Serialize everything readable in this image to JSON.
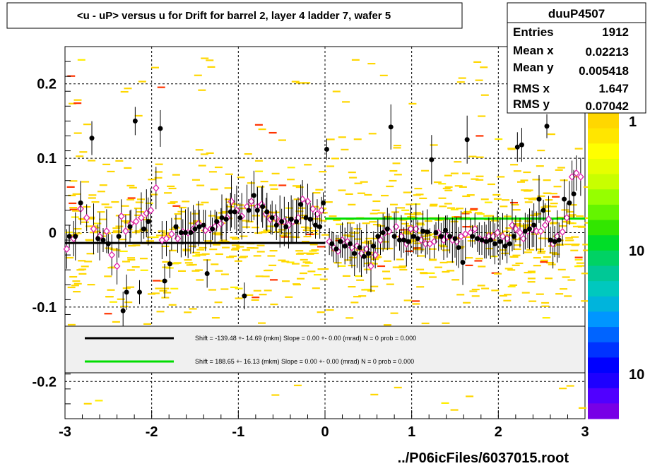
{
  "title": "<u - uP>       versus   u for Drift for barrel 2, layer 4 ladder 7, wafer 5",
  "footer": "../P06icFiles/6037015.root",
  "stats": {
    "name": "duuP4507",
    "rows": [
      {
        "label": "Entries",
        "value": "1912"
      },
      {
        "label": "Mean x",
        "value": "0.02213"
      },
      {
        "label": "Mean y",
        "value": "0.005418"
      },
      {
        "label": "RMS x",
        "value": "1.647"
      },
      {
        "label": "RMS y",
        "value": "0.07042"
      }
    ]
  },
  "legend": [
    {
      "color": "#000000",
      "text": "Shift =  -139.48 +- 14.69 (mkm) Slope =     0.00 +- 0.00 (mrad)  N = 0 prob = 0.000"
    },
    {
      "color": "#00dd00",
      "text": "Shift =   188.65 +- 16.13 (mkm) Slope =     0.00 +- 0.00 (mrad)  N = 0 prob = 0.000"
    }
  ],
  "colorbar": {
    "labels": [
      "1",
      "10",
      "10"
    ]
  },
  "chart_data": {
    "type": "scatter",
    "xlim": [
      -3,
      3
    ],
    "ylim": [
      -0.25,
      0.25
    ],
    "xticks": [
      "-3",
      "-2",
      "-1",
      "0",
      "1",
      "2",
      "3"
    ],
    "yticks": [
      "-0.2",
      "-0.1",
      "0",
      "0.1",
      "0.2"
    ],
    "grid": true,
    "fits": [
      {
        "x": [
          -3,
          0
        ],
        "y": -0.0139,
        "color": "#000000"
      },
      {
        "x": [
          0,
          3
        ],
        "y": 0.0189,
        "color": "#00dd00"
      }
    ],
    "series": [
      {
        "marker": "filled-circle",
        "color": "#000000",
        "points": [
          [
            -2.95,
            -0.005
          ],
          [
            -2.88,
            -0.005
          ],
          [
            -2.82,
            0.04
          ],
          [
            -2.69,
            0.127
          ],
          [
            -2.62,
            -0.008
          ],
          [
            -2.56,
            -0.01
          ],
          [
            -2.5,
            -0.015
          ],
          [
            -2.38,
            -0.005
          ],
          [
            -2.33,
            -0.105
          ],
          [
            -2.29,
            -0.08
          ],
          [
            -2.25,
            0.008
          ],
          [
            -2.19,
            0.15
          ],
          [
            -2.14,
            -0.08
          ],
          [
            -2.09,
            0.005
          ],
          [
            -2.04,
            0.015
          ],
          [
            -1.9,
            0.14
          ],
          [
            -1.85,
            -0.065
          ],
          [
            -1.79,
            -0.042
          ],
          [
            -1.72,
            0.008
          ],
          [
            -1.66,
            0
          ],
          [
            -1.61,
            0
          ],
          [
            -1.55,
            0
          ],
          [
            -1.5,
            0.005
          ],
          [
            -1.45,
            0.008
          ],
          [
            -1.4,
            0.01
          ],
          [
            -1.36,
            -0.055
          ],
          [
            -1.3,
            0.005
          ],
          [
            -1.25,
            0.015
          ],
          [
            -1.19,
            0.02
          ],
          [
            -1.14,
            0.018
          ],
          [
            -1.09,
            0.028
          ],
          [
            -1.04,
            0.028
          ],
          [
            -0.98,
            0.02
          ],
          [
            -0.93,
            -0.085
          ],
          [
            -0.88,
            0.03
          ],
          [
            -0.82,
            0.05
          ],
          [
            -0.78,
            0.03
          ],
          [
            -0.72,
            0.035
          ],
          [
            -0.67,
            0.028
          ],
          [
            -0.61,
            0.02
          ],
          [
            -0.56,
            0.01
          ],
          [
            -0.5,
            0.015
          ],
          [
            -0.45,
            0.008
          ],
          [
            -0.39,
            0.018
          ],
          [
            -0.33,
            0.015
          ],
          [
            -0.28,
            0.038
          ],
          [
            -0.22,
            0.02
          ],
          [
            -0.17,
            0.018
          ],
          [
            -0.11,
            0.01
          ],
          [
            -0.06,
            0.008
          ],
          [
            -0.02,
            0.04
          ],
          [
            0.02,
            0.112
          ],
          [
            0.08,
            -0.015
          ],
          [
            0.13,
            -0.022
          ],
          [
            0.18,
            -0.012
          ],
          [
            0.23,
            -0.018
          ],
          [
            0.29,
            -0.015
          ],
          [
            0.34,
            -0.028
          ],
          [
            0.4,
            -0.02
          ],
          [
            0.45,
            -0.032
          ],
          [
            0.5,
            -0.028
          ],
          [
            0.56,
            -0.018
          ],
          [
            0.61,
            -0.005
          ],
          [
            0.67,
            0
          ],
          [
            0.72,
            0.005
          ],
          [
            0.76,
            0.142
          ],
          [
            0.8,
            -0.005
          ],
          [
            0.86,
            -0.01
          ],
          [
            0.91,
            -0.01
          ],
          [
            0.96,
            -0.012
          ],
          [
            1.02,
            -0.005
          ],
          [
            1.07,
            -0.008
          ],
          [
            1.13,
            0.002
          ],
          [
            1.18,
            0.001
          ],
          [
            1.23,
            0.098
          ],
          [
            1.28,
            0
          ],
          [
            1.34,
            -0.005
          ],
          [
            1.39,
            0.003
          ],
          [
            1.44,
            -0.005
          ],
          [
            1.5,
            -0.008
          ],
          [
            1.54,
            -0.02
          ],
          [
            1.59,
            -0.04
          ],
          [
            1.64,
            0.125
          ],
          [
            1.7,
            -0.005
          ],
          [
            1.76,
            -0.008
          ],
          [
            1.81,
            -0.01
          ],
          [
            1.86,
            -0.012
          ],
          [
            1.91,
            -0.01
          ],
          [
            1.96,
            -0.015
          ],
          [
            2.02,
            -0.012
          ],
          [
            2.08,
            -0.018
          ],
          [
            2.13,
            -0.015
          ],
          [
            2.18,
            -0.005
          ],
          [
            2.22,
            0.115
          ],
          [
            2.27,
            0.118
          ],
          [
            2.31,
            0.002
          ],
          [
            2.36,
            0.005
          ],
          [
            2.41,
            0.01
          ],
          [
            2.47,
            0.045
          ],
          [
            2.52,
            0.03
          ],
          [
            2.56,
            0.143
          ],
          [
            2.6,
            -0.01
          ],
          [
            2.65,
            -0.012
          ],
          [
            2.7,
            -0.01
          ],
          [
            2.76,
            0.045
          ],
          [
            2.82,
            0.04
          ],
          [
            2.87,
            0.052
          ]
        ]
      },
      {
        "marker": "open-diamond",
        "color": "#dd22aa",
        "points": [
          [
            -2.98,
            -0.022
          ],
          [
            -2.9,
            -0.008
          ],
          [
            -2.82,
            0.032
          ],
          [
            -2.75,
            0.02
          ],
          [
            -2.67,
            0.005
          ],
          [
            -2.6,
            -0.005
          ],
          [
            -2.52,
            0.002
          ],
          [
            -2.46,
            -0.03
          ],
          [
            -2.4,
            -0.045
          ],
          [
            -2.35,
            0.022
          ],
          [
            -2.3,
            0.002
          ],
          [
            -2.24,
            0.012
          ],
          [
            -2.18,
            0.015
          ],
          [
            -2.12,
            0.02
          ],
          [
            -2.06,
            0.026
          ],
          [
            -2.01,
            0.03
          ],
          [
            -1.95,
            0.06
          ],
          [
            -1.88,
            -0.01
          ],
          [
            -1.83,
            -0.008
          ],
          [
            -1.77,
            -0.002
          ],
          [
            -1.7,
            -0.008
          ],
          [
            -1.64,
            0.001
          ],
          [
            -1.58,
            0
          ],
          [
            -1.52,
            0.005
          ],
          [
            -1.46,
            0.012
          ],
          [
            -1.38,
            0.003
          ],
          [
            -1.32,
            0.005
          ],
          [
            -1.27,
            0.008
          ],
          [
            -1.2,
            0.012
          ],
          [
            -1.13,
            0.02
          ],
          [
            -1.08,
            0.042
          ],
          [
            -1.02,
            0.03
          ],
          [
            -0.96,
            0.022
          ],
          [
            -0.9,
            0.035
          ],
          [
            -0.85,
            0.042
          ],
          [
            -0.78,
            0.035
          ],
          [
            -0.73,
            0.038
          ],
          [
            -0.68,
            0.025
          ],
          [
            -0.63,
            0.018
          ],
          [
            -0.57,
            0.02
          ],
          [
            -0.52,
            0.015
          ],
          [
            -0.47,
            0.015
          ],
          [
            -0.42,
            0.01
          ],
          [
            -0.37,
            0.015
          ],
          [
            -0.31,
            0.02
          ],
          [
            -0.26,
            0.045
          ],
          [
            -0.2,
            0.042
          ],
          [
            -0.14,
            0.032
          ],
          [
            -0.09,
            0.025
          ],
          [
            -0.04,
            0.03
          ],
          [
            0.05,
            -0.012
          ],
          [
            0.1,
            -0.02
          ],
          [
            0.15,
            -0.025
          ],
          [
            0.2,
            -0.01
          ],
          [
            0.26,
            -0.012
          ],
          [
            0.31,
            -0.02
          ],
          [
            0.37,
            -0.018
          ],
          [
            0.42,
            -0.028
          ],
          [
            0.48,
            -0.022
          ],
          [
            0.53,
            -0.045
          ],
          [
            0.58,
            -0.03
          ],
          [
            0.64,
            -0.01
          ],
          [
            0.69,
            0
          ],
          [
            0.74,
            0.002
          ],
          [
            0.82,
            0.008
          ],
          [
            0.88,
            -0.005
          ],
          [
            0.94,
            -0.015
          ],
          [
            0.99,
            0.005
          ],
          [
            1.05,
            0.005
          ],
          [
            1.11,
            -0.01
          ],
          [
            1.16,
            -0.015
          ],
          [
            1.21,
            -0.015
          ],
          [
            1.26,
            -0.012
          ],
          [
            1.31,
            0
          ],
          [
            1.37,
            -0.01
          ],
          [
            1.41,
            -0.005
          ],
          [
            1.47,
            -0.01
          ],
          [
            1.52,
            -0.012
          ],
          [
            1.57,
            -0.005
          ],
          [
            1.62,
            -0.002
          ],
          [
            1.68,
            0
          ],
          [
            1.73,
            0.005
          ],
          [
            1.78,
            -0.008
          ],
          [
            1.84,
            -0.01
          ],
          [
            1.89,
            -0.005
          ],
          [
            1.94,
            -0.005
          ],
          [
            1.99,
            0
          ],
          [
            2.05,
            -0.005
          ],
          [
            2.1,
            -0.008
          ],
          [
            2.16,
            0.01
          ],
          [
            2.2,
            0.005
          ],
          [
            2.25,
            0
          ],
          [
            2.29,
            -0.008
          ],
          [
            2.34,
            0.002
          ],
          [
            2.39,
            0.005
          ],
          [
            2.44,
            0.002
          ],
          [
            2.49,
            0.002
          ],
          [
            2.54,
            0.01
          ],
          [
            2.58,
            0.018
          ],
          [
            2.63,
            -0.015
          ],
          [
            2.68,
            -0.005
          ],
          [
            2.74,
            0.001
          ],
          [
            2.79,
            0.02
          ],
          [
            2.85,
            0.075
          ],
          [
            2.9,
            0.08
          ],
          [
            2.95,
            0.075
          ]
        ]
      }
    ]
  }
}
